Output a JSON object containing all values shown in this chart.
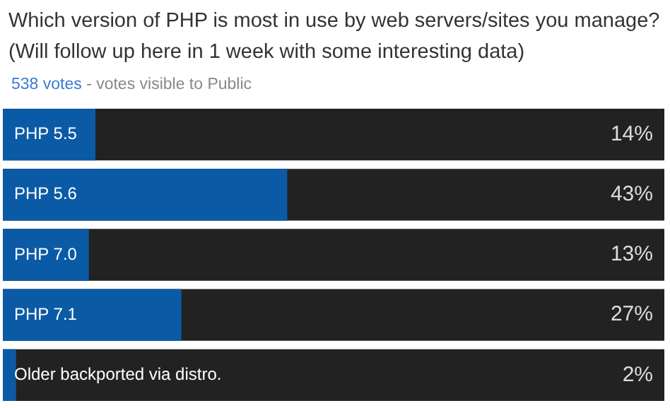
{
  "chart_data": {
    "type": "bar",
    "orientation": "horizontal",
    "title": "Which version of PHP is most in use by web servers/sites you manage?\n(Will follow up here in 1 week with some interesting data)",
    "subtitle": "538 votes - votes visible to Public",
    "categories": [
      "PHP 5.5",
      "PHP 5.6",
      "PHP 7.0",
      "PHP 7.1",
      "Older backported via distro."
    ],
    "values": [
      14,
      43,
      13,
      27,
      2
    ],
    "value_labels": [
      "14%",
      "43%",
      "13%",
      "27%",
      "2%"
    ],
    "color": "#0b5aa6",
    "xlim": [
      0,
      100
    ],
    "tick_labels": false
  }
}
